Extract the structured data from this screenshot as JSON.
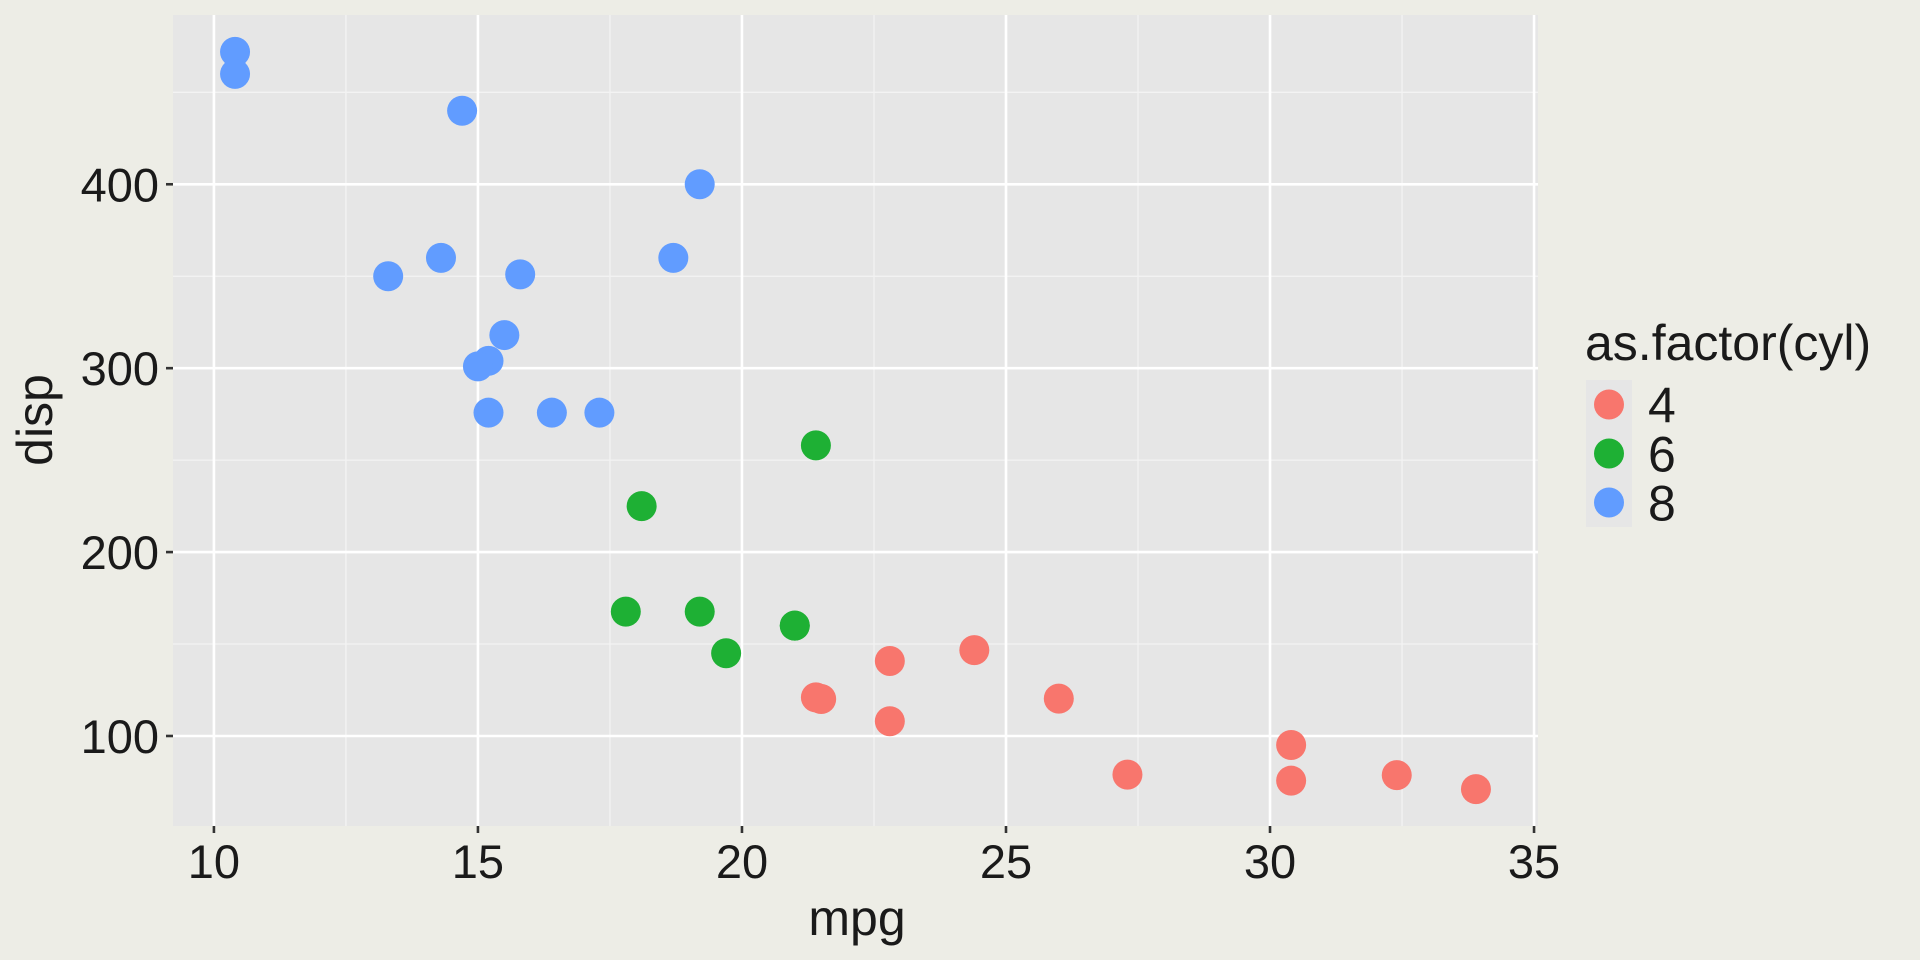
{
  "chart_data": {
    "type": "scatter",
    "x_label": "mpg",
    "y_label": "disp",
    "legend_title": "as.factor(cyl)",
    "legend_position": "right",
    "grid": true,
    "xlim": [
      9.225,
      35.075
    ],
    "ylim": [
      51.055,
      492.045
    ],
    "xticks": [
      10,
      15,
      20,
      25,
      30,
      35
    ],
    "yticks": [
      100,
      200,
      300,
      400
    ],
    "x_minor_grid": [
      12.5,
      17.5,
      22.5,
      27.5,
      32.5
    ],
    "y_minor_grid": [
      150,
      250,
      350,
      450
    ],
    "series": [
      {
        "name": "4",
        "color": "#F8766D",
        "x": [
          22.8,
          24.4,
          22.8,
          32.4,
          30.4,
          33.9,
          21.5,
          27.3,
          26,
          30.4,
          21.4
        ],
        "values": [
          108,
          146.7,
          140.8,
          78.7,
          75.7,
          71.1,
          120.1,
          79,
          120.3,
          95.1,
          121
        ]
      },
      {
        "name": "6",
        "color": "#1EB034",
        "x": [
          21,
          21,
          21.4,
          18.1,
          19.2,
          17.8,
          19.7
        ],
        "values": [
          160,
          160,
          258,
          225,
          167.6,
          167.6,
          145
        ]
      },
      {
        "name": "8",
        "color": "#619CFF",
        "x": [
          18.7,
          14.3,
          16.4,
          17.3,
          15.2,
          10.4,
          10.4,
          14.7,
          15.5,
          15.2,
          13.3,
          19.2,
          15.8,
          15
        ],
        "values": [
          360,
          360,
          275.8,
          275.8,
          275.8,
          472,
          460,
          440,
          318,
          304,
          350,
          400,
          351,
          301
        ]
      }
    ]
  }
}
